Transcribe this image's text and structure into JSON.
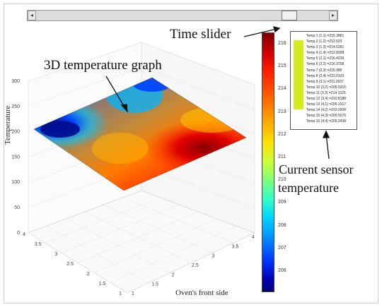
{
  "slider": {
    "left_arrow": "◂",
    "right_arrow": "▸",
    "value": 0.88
  },
  "annotations": {
    "time_slider": "Time slider",
    "graph": "3D temperature graph",
    "current_line1": "Current sensor",
    "current_line2": "temperature"
  },
  "plot": {
    "zlabel": "Temperature",
    "xlabel": "Oven's front side",
    "z_ticks": [
      "300",
      "250",
      "200",
      "150",
      "100",
      "50",
      "0"
    ],
    "y_ticks": [
      "4",
      "3.5",
      "3",
      "2.5",
      "2",
      "1.5",
      "1"
    ],
    "x_ticks": [
      "1",
      "1.5",
      "2",
      "2.5",
      "3",
      "3.5",
      "4"
    ]
  },
  "colorbar": {
    "ticks": [
      "216",
      "215",
      "214",
      "213",
      "212",
      "211",
      "210",
      "209",
      "208",
      "207",
      "206"
    ]
  },
  "legend": {
    "entries": [
      "Temp 1 (1,1) =215.3861",
      "Temp 2 (1,2) =212.023",
      "Temp 3 (1,3) =214.5281",
      "Temp 4 (1,4) =212.8298",
      "Temp 5 (2,1) =216.4239",
      "Temp 6 (2,2) =216.3708",
      "Temp 7 (2,3) =215.985",
      "Temp 8 (2,4) =212.6103",
      "Temp 9 (3,1) =211.2637",
      "Temp 10 (3,2) =205.5315",
      "Temp 11 (3,3) =214.1525",
      "Temp 12 (3,4) =210.8188",
      "Temp 13 (4,1) =205.1517",
      "Temp 14 (4,2) =210.2908",
      "Temp 15 (4,3) =209.5076",
      "Temp 16 (4,4) =206.2438"
    ]
  },
  "colors": {
    "legend_swatch": "#d4ec1c"
  }
}
